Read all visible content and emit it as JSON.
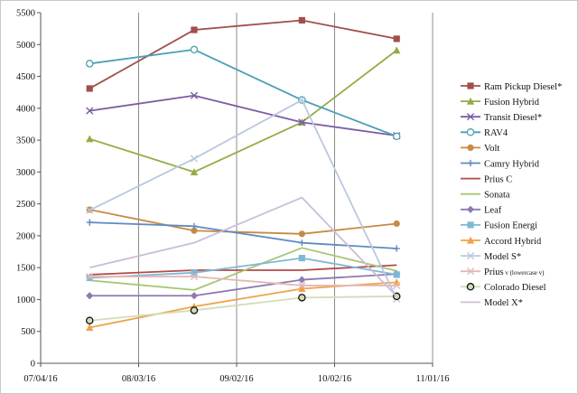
{
  "chart_data": {
    "type": "line",
    "title": "",
    "xlabel": "",
    "ylabel": "",
    "x_axis": {
      "type": "date",
      "range": [
        "07/04/16",
        "11/01/16"
      ],
      "tick_labels": [
        "07/04/16",
        "08/03/16",
        "09/02/16",
        "10/02/16",
        "11/01/16"
      ]
    },
    "y_axis": {
      "range": [
        0,
        5500
      ],
      "ticks": [
        0,
        500,
        1000,
        1500,
        2000,
        2500,
        3000,
        3500,
        4000,
        4500,
        5000,
        5500
      ]
    },
    "grid": {
      "vertical": true,
      "horizontal": false
    },
    "legend_position": "right",
    "x": [
      "07/19/16",
      "08/20/16",
      "09/22/16",
      "10/21/16"
    ],
    "series": [
      {
        "name": "Ram Pickup Diesel*",
        "color": "#a0504a",
        "marker": "square",
        "values": [
          4310,
          5230,
          5380,
          5090
        ]
      },
      {
        "name": "Fusion Hybrid",
        "color": "#92ad45",
        "marker": "triangle",
        "values": [
          3520,
          3000,
          3780,
          4910
        ]
      },
      {
        "name": "Transit Diesel*",
        "color": "#7a5ea3",
        "marker": "x",
        "values": [
          3960,
          4200,
          3780,
          3570
        ]
      },
      {
        "name": "RAV4",
        "color": "#4c9fb3",
        "marker": "circle-open",
        "values": [
          4700,
          4920,
          4130,
          3560
        ]
      },
      {
        "name": "Volt",
        "color": "#c88a43",
        "marker": "circle",
        "values": [
          2410,
          2080,
          2030,
          2190
        ]
      },
      {
        "name": "Camry Hybrid",
        "color": "#5f8ac2",
        "marker": "plus",
        "values": [
          2210,
          2150,
          1890,
          1800
        ]
      },
      {
        "name": "Prius C",
        "color": "#b34a47",
        "marker": "none",
        "values": [
          1390,
          1460,
          1460,
          1540
        ]
      },
      {
        "name": "Sonata",
        "color": "#a9c574",
        "marker": "none",
        "values": [
          1300,
          1150,
          1810,
          1450
        ]
      },
      {
        "name": "Leaf",
        "color": "#8e79b2",
        "marker": "diamond",
        "values": [
          1060,
          1060,
          1310,
          1400
        ]
      },
      {
        "name": "Fusion Energi",
        "color": "#7fb8d6",
        "marker": "square",
        "values": [
          1340,
          1420,
          1650,
          1390
        ]
      },
      {
        "name": "Accord Hybrid",
        "color": "#f0a24a",
        "marker": "triangle",
        "values": [
          560,
          890,
          1170,
          1270
        ]
      },
      {
        "name": "Model S*",
        "color": "#b9c8df",
        "marker": "x",
        "values": [
          2400,
          3210,
          4130,
          1010
        ]
      },
      {
        "name": "Prius",
        "label_suffix": "v (lowercase v)",
        "color": "#e3b9b7",
        "marker": "x",
        "values": [
          1360,
          1360,
          1220,
          1220
        ]
      },
      {
        "name": "Colorado Diesel",
        "color": "#d2ddb8",
        "marker": "circle-open-black",
        "values": [
          670,
          830,
          1030,
          1050
        ]
      },
      {
        "name": "Model X*",
        "color": "#cbbcd8",
        "marker": "none",
        "values": [
          1500,
          1890,
          2600,
          1050
        ]
      }
    ]
  }
}
